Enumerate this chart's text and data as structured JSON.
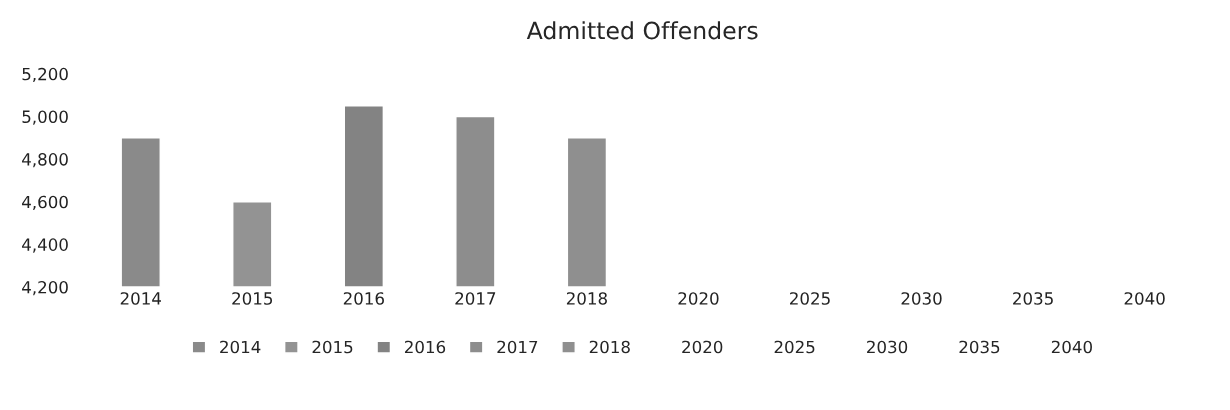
{
  "chart_data": {
    "type": "bar",
    "title": "Admitted Offenders",
    "categories": [
      "2014",
      "2015",
      "2016",
      "2017",
      "2018",
      "2020",
      "2025",
      "2030",
      "2035",
      "2040"
    ],
    "series": [
      {
        "name": "2014",
        "color": "#8a8a8a",
        "values": [
          4900,
          null,
          null,
          null,
          null,
          null,
          null,
          null,
          null,
          null
        ]
      },
      {
        "name": "2015",
        "color": "#939393",
        "values": [
          null,
          4600,
          null,
          null,
          null,
          null,
          null,
          null,
          null,
          null
        ]
      },
      {
        "name": "2016",
        "color": "#838383",
        "values": [
          null,
          null,
          5050,
          null,
          null,
          null,
          null,
          null,
          null,
          null
        ]
      },
      {
        "name": "2017",
        "color": "#8d8d8d",
        "values": [
          null,
          null,
          null,
          5000,
          null,
          null,
          null,
          null,
          null,
          null
        ]
      },
      {
        "name": "2018",
        "color": "#8f8f8f",
        "values": [
          null,
          null,
          null,
          null,
          4900,
          null,
          null,
          null,
          null,
          null
        ]
      },
      {
        "name": "2020",
        "values": [
          null,
          null,
          null,
          null,
          null,
          null,
          null,
          null,
          null,
          null
        ]
      },
      {
        "name": "2025",
        "values": [
          null,
          null,
          null,
          null,
          null,
          null,
          null,
          null,
          null,
          null
        ]
      },
      {
        "name": "2030",
        "values": [
          null,
          null,
          null,
          null,
          null,
          null,
          null,
          null,
          null,
          null
        ]
      },
      {
        "name": "2035",
        "values": [
          null,
          null,
          null,
          null,
          null,
          null,
          null,
          null,
          null,
          null
        ]
      },
      {
        "name": "2040",
        "values": [
          null,
          null,
          null,
          null,
          null,
          null,
          null,
          null,
          null,
          null
        ]
      }
    ],
    "ylim": [
      4200,
      5200
    ],
    "yticks": [
      {
        "value": 4200,
        "label": "4,200"
      },
      {
        "value": 4400,
        "label": "4,400"
      },
      {
        "value": 4600,
        "label": "4,600"
      },
      {
        "value": 4800,
        "label": "4,800"
      },
      {
        "value": 5000,
        "label": "5,000"
      },
      {
        "value": 5200,
        "label": "5,200"
      }
    ],
    "grid": false,
    "legend": "bottom"
  }
}
